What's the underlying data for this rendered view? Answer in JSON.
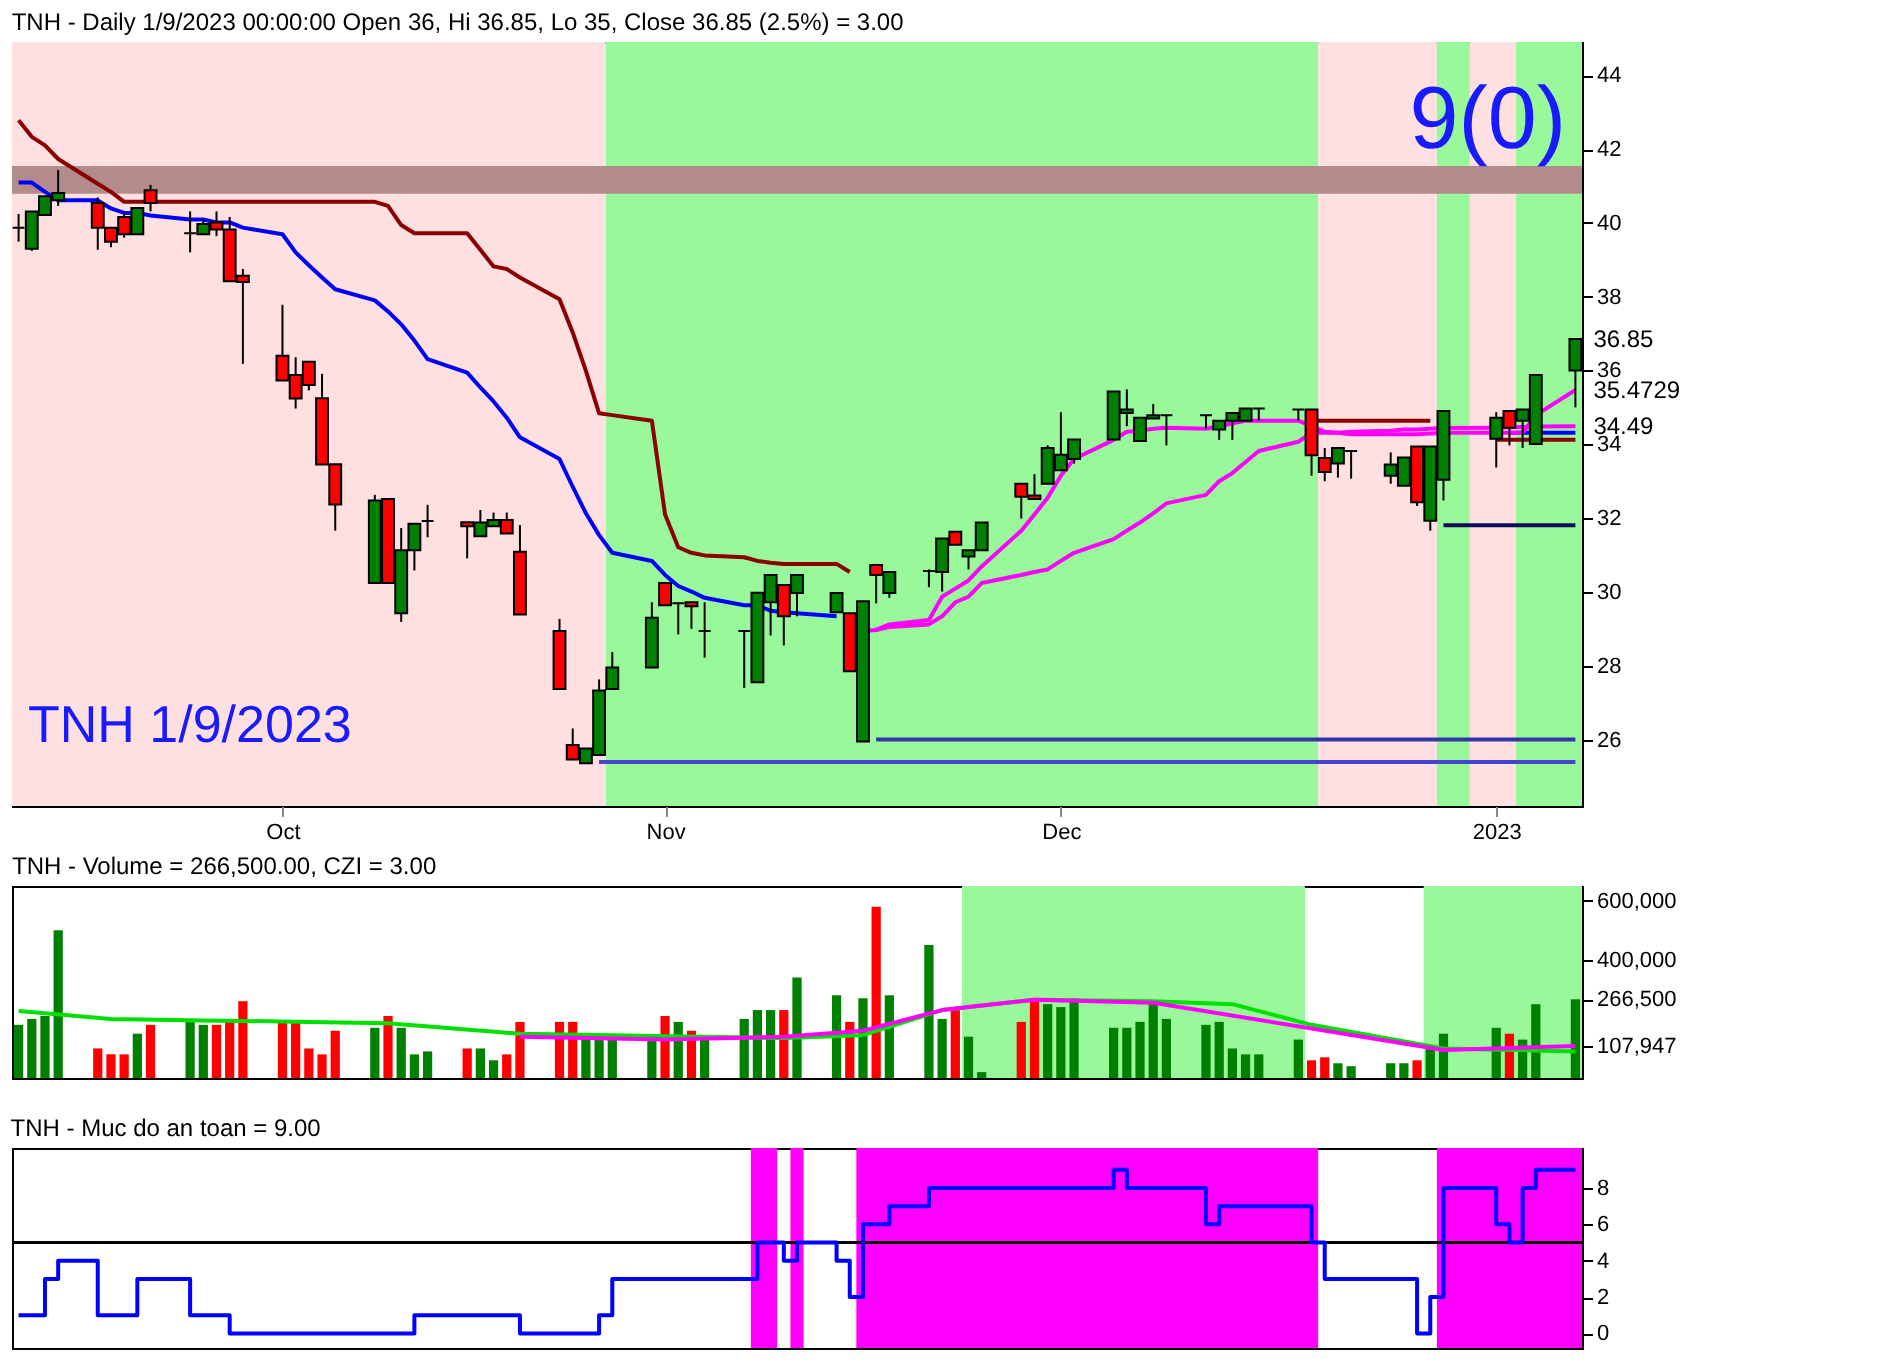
{
  "chart_data": [
    {
      "type": "candlestick",
      "title": "TNH - Daily 1/9/2023 00:00:00 Open 36, Hi 36.85, Lo 35, Close 36.85 (2.5%)  = 3.00",
      "x": [
        "2022-09-13",
        "2022-09-14",
        "2022-09-15",
        "2022-09-16",
        "2022-09-19",
        "2022-09-20",
        "2022-09-21",
        "2022-09-22",
        "2022-09-23",
        "2022-09-26",
        "2022-09-27",
        "2022-09-28",
        "2022-09-29",
        "2022-09-30",
        "2022-10-03",
        "2022-10-04",
        "2022-10-05",
        "2022-10-06",
        "2022-10-07",
        "2022-10-10",
        "2022-10-11",
        "2022-10-12",
        "2022-10-13",
        "2022-10-14",
        "2022-10-17",
        "2022-10-18",
        "2022-10-19",
        "2022-10-20",
        "2022-10-21",
        "2022-10-24",
        "2022-10-25",
        "2022-10-26",
        "2022-10-27",
        "2022-10-28",
        "2022-10-31",
        "2022-11-01",
        "2022-11-02",
        "2022-11-03",
        "2022-11-04",
        "2022-11-07",
        "2022-11-08",
        "2022-11-09",
        "2022-11-10",
        "2022-11-11",
        "2022-11-14",
        "2022-11-15",
        "2022-11-16",
        "2022-11-17",
        "2022-11-18",
        "2022-11-21",
        "2022-11-22",
        "2022-11-23",
        "2022-11-24",
        "2022-11-25",
        "2022-11-28",
        "2022-11-29",
        "2022-11-30",
        "2022-12-01",
        "2022-12-02",
        "2022-12-05",
        "2022-12-06",
        "2022-12-07",
        "2022-12-08",
        "2022-12-09",
        "2022-12-12",
        "2022-12-13",
        "2022-12-14",
        "2022-12-15",
        "2022-12-16",
        "2022-12-19",
        "2022-12-20",
        "2022-12-21",
        "2022-12-22",
        "2022-12-23",
        "2022-12-26",
        "2022-12-27",
        "2022-12-28",
        "2022-12-29",
        "2022-12-30",
        "2023-01-03",
        "2023-01-04",
        "2023-01-05",
        "2023-01-06",
        "2023-01-09"
      ],
      "ohlc": [
        [
          39.87,
          40.24,
          39.49,
          39.87
        ],
        [
          39.3,
          40.31,
          39.24,
          40.31
        ],
        [
          40.21,
          40.72,
          40.21,
          40.72
        ],
        [
          40.61,
          41.43,
          40.46,
          40.81
        ],
        [
          40.54,
          40.69,
          39.27,
          39.87
        ],
        [
          39.87,
          39.87,
          39.34,
          39.49
        ],
        [
          40.16,
          40.24,
          39.6,
          39.69
        ],
        [
          39.69,
          40.4,
          39.69,
          40.4
        ],
        [
          40.88,
          41.03,
          40.31,
          40.54
        ],
        [
          39.72,
          40.31,
          39.2,
          39.72
        ],
        [
          39.69,
          40.1,
          39.69,
          39.97
        ],
        [
          40.01,
          40.31,
          39.64,
          39.82
        ],
        [
          39.82,
          40.16,
          38.42,
          38.42
        ],
        [
          38.57,
          38.75,
          36.18,
          38.4
        ],
        [
          36.4,
          37.78,
          35.73,
          35.73
        ],
        [
          35.88,
          36.36,
          34.97,
          35.24
        ],
        [
          36.24,
          36.24,
          35.46,
          35.61
        ],
        [
          35.25,
          35.91,
          33.45,
          33.45
        ],
        [
          33.46,
          33.46,
          31.66,
          32.37
        ],
        [
          30.24,
          32.63,
          30.24,
          32.48
        ],
        [
          32.52,
          32.52,
          30.24,
          30.24
        ],
        [
          29.42,
          31.73,
          29.19,
          31.13
        ],
        [
          31.13,
          31.85,
          30.58,
          31.85
        ],
        [
          31.92,
          32.36,
          31.48,
          31.92
        ],
        [
          31.89,
          31.89,
          30.91,
          31.78
        ],
        [
          31.51,
          32.22,
          31.51,
          31.88
        ],
        [
          31.78,
          32.15,
          31.78,
          31.95
        ],
        [
          31.95,
          32.15,
          31.58,
          31.58
        ],
        [
          31.09,
          31.81,
          29.39,
          29.39
        ],
        [
          28.94,
          29.27,
          27.37,
          27.37
        ],
        [
          25.85,
          26.3,
          25.46,
          25.46
        ],
        [
          25.36,
          25.76,
          25.36,
          25.76
        ],
        [
          25.58,
          27.63,
          25.58,
          27.33
        ],
        [
          27.37,
          28.37,
          27.37,
          27.95
        ],
        [
          27.95,
          29.72,
          27.95,
          29.3
        ],
        [
          30.24,
          30.24,
          29.64,
          29.64
        ],
        [
          29.69,
          29.72,
          28.85,
          29.69
        ],
        [
          29.72,
          29.72,
          29.0,
          29.61
        ],
        [
          28.94,
          29.72,
          28.22,
          28.94
        ],
        [
          28.94,
          28.94,
          27.4,
          28.94
        ],
        [
          27.55,
          29.98,
          27.55,
          29.98
        ],
        [
          29.72,
          30.46,
          28.82,
          30.46
        ],
        [
          30.19,
          30.19,
          28.55,
          29.34
        ],
        [
          29.97,
          30.46,
          29.34,
          30.46
        ],
        [
          29.45,
          29.97,
          29.45,
          29.97
        ],
        [
          29.42,
          29.42,
          27.85,
          27.85
        ],
        [
          25.95,
          29.75,
          25.95,
          29.75
        ],
        [
          30.73,
          30.73,
          29.69,
          30.46
        ],
        [
          29.97,
          30.54,
          29.84,
          30.54
        ],
        [
          30.57,
          30.61,
          30.13,
          30.57
        ],
        [
          30.54,
          31.45,
          30.01,
          31.45
        ],
        [
          31.63,
          31.63,
          31.28,
          31.28
        ],
        [
          30.96,
          31.13,
          30.61,
          31.13
        ],
        [
          31.13,
          31.88,
          31.13,
          31.88
        ],
        [
          32.93,
          32.93,
          31.99,
          32.58
        ],
        [
          32.61,
          33.19,
          32.52,
          32.52
        ],
        [
          32.93,
          33.97,
          32.93,
          33.9
        ],
        [
          33.3,
          34.87,
          33.3,
          33.72
        ],
        [
          33.6,
          34.13,
          33.48,
          34.13
        ],
        [
          34.13,
          35.43,
          34.13,
          35.43
        ],
        [
          34.85,
          35.49,
          34.49,
          34.94
        ],
        [
          34.09,
          34.72,
          34.09,
          34.72
        ],
        [
          34.7,
          35.09,
          34.7,
          34.79
        ],
        [
          34.79,
          34.79,
          33.97,
          34.79
        ],
        [
          34.79,
          34.79,
          34.42,
          34.79
        ],
        [
          34.4,
          34.64,
          34.12,
          34.64
        ],
        [
          34.64,
          34.85,
          34.12,
          34.85
        ],
        [
          34.64,
          34.97,
          34.64,
          34.97
        ],
        [
          34.97,
          34.97,
          34.64,
          34.97
        ],
        [
          34.94,
          34.94,
          34.64,
          34.94
        ],
        [
          34.94,
          34.94,
          33.15,
          33.7
        ],
        [
          33.63,
          33.9,
          33.0,
          33.25
        ],
        [
          33.48,
          33.9,
          33.1,
          33.9
        ],
        [
          33.82,
          33.82,
          33.07,
          33.82
        ],
        [
          33.15,
          33.78,
          32.93,
          33.45
        ],
        [
          32.88,
          33.64,
          32.88,
          33.64
        ],
        [
          33.94,
          33.94,
          32.33,
          32.43
        ],
        [
          31.93,
          33.94,
          31.66,
          33.94
        ],
        [
          33.04,
          34.9,
          32.48,
          34.9
        ],
        [
          34.15,
          34.87,
          33.37,
          34.72
        ],
        [
          34.9,
          34.9,
          33.97,
          34.45
        ],
        [
          34.64,
          34.94,
          33.9,
          34.94
        ],
        [
          34.01,
          35.88,
          34.01,
          35.88
        ],
        [
          36,
          36.85,
          35,
          36.85
        ]
      ],
      "colors": [
        "#000000",
        "#008000",
        "#008000",
        "#008000",
        "#ff0000",
        "#ff0000",
        "#ff0000",
        "#008000",
        "#ff0000",
        "#000000",
        "#008000",
        "#ff0000",
        "#ff0000",
        "#ff0000",
        "#ff0000",
        "#ff0000",
        "#ff0000",
        "#ff0000",
        "#ff0000",
        "#008000",
        "#ff0000",
        "#008000",
        "#008000",
        "#000000",
        "#ff0000",
        "#008000",
        "#008000",
        "#ff0000",
        "#ff0000",
        "#ff0000",
        "#ff0000",
        "#008000",
        "#008000",
        "#008000",
        "#008000",
        "#ff0000",
        "#000000",
        "#ff0000",
        "#000000",
        "#000000",
        "#008000",
        "#008000",
        "#ff0000",
        "#008000",
        "#008000",
        "#ff0000",
        "#008000",
        "#ff0000",
        "#008000",
        "#000000",
        "#008000",
        "#ff0000",
        "#008000",
        "#008000",
        "#ff0000",
        "#ff0000",
        "#008000",
        "#008000",
        "#008000",
        "#008000",
        "#008000",
        "#008000",
        "#008000",
        "#000000",
        "#000000",
        "#008000",
        "#008000",
        "#008000",
        "#000000",
        "#000000",
        "#ff0000",
        "#ff0000",
        "#008000",
        "#000000",
        "#008000",
        "#008000",
        "#ff0000",
        "#008000",
        "#008000",
        "#008000",
        "#ff0000",
        "#008000",
        "#008000",
        "#008000"
      ],
      "series": [
        {
          "type": "line",
          "color": "#0000ff",
          "values": [
            41.09,
            41.09,
            40.84,
            40.61,
            40.61,
            40.39,
            40.27,
            40.27,
            40.2,
            40.09,
            40.09,
            40.01,
            40.01,
            39.87,
            39.69,
            39.2,
            38.85,
            38.52,
            38.2,
            37.9,
            37.6,
            37.25,
            36.81,
            36.31,
            35.94,
            35.54,
            35.16,
            34.72,
            34.19,
            33.6,
            32.85,
            32.13,
            31.54,
            31.06,
            30.84,
            30.46,
            30.16,
            30.01,
            29.84,
            29.64,
            29.64,
            29.49,
            29.45,
            29.42,
            29.34,
            null,
            null,
            null,
            null,
            null,
            null,
            null,
            null,
            null,
            null,
            null,
            null,
            null,
            null,
            null,
            null,
            null,
            null,
            null,
            null,
            null,
            null,
            null,
            null,
            null,
            null,
            null,
            null,
            null,
            null,
            null,
            null,
            null,
            null,
            null,
            34.31,
            34.31,
            34.31,
            34.31
          ]
        },
        {
          "type": "line",
          "color": "#8b0000",
          "values": [
            42.78,
            42.33,
            42.1,
            41.73,
            41.06,
            40.84,
            40.57,
            40.57,
            40.57,
            40.57,
            40.57,
            40.57,
            40.57,
            40.57,
            40.57,
            40.57,
            40.57,
            40.57,
            40.57,
            40.57,
            40.46,
            39.94,
            39.72,
            39.72,
            39.72,
            39.27,
            38.82,
            38.75,
            38.52,
            37.93,
            37.03,
            35.99,
            34.84,
            34.79,
            34.64,
            32.1,
            31.21,
            31.06,
            30.99,
            30.94,
            30.84,
            30.79,
            30.76,
            30.76,
            30.76,
            30.54,
            null,
            null,
            null,
            null,
            null,
            null,
            null,
            null,
            null,
            null,
            null,
            null,
            null,
            null,
            null,
            null,
            null,
            null,
            null,
            null,
            null,
            null,
            null,
            null,
            34.64,
            34.64,
            34.64,
            34.64,
            34.64,
            34.64,
            34.64,
            34.64,
            null,
            34.12,
            34.12,
            34.12,
            34.12,
            34.12
          ]
        },
        {
          "type": "line",
          "color": "#ff00ff",
          "values": [
            null,
            null,
            null,
            null,
            null,
            null,
            null,
            null,
            null,
            null,
            null,
            null,
            null,
            null,
            null,
            null,
            null,
            null,
            null,
            null,
            null,
            null,
            null,
            null,
            null,
            null,
            null,
            null,
            null,
            null,
            null,
            null,
            null,
            null,
            null,
            null,
            null,
            null,
            null,
            null,
            null,
            null,
            null,
            null,
            null,
            null,
            28.94,
            28.97,
            29.12,
            29.24,
            29.87,
            30.09,
            30.31,
            30.69,
            31.66,
            32.1,
            32.55,
            33.15,
            33.6,
            34.12,
            34.34,
            34.37,
            34.42,
            34.45,
            34.42,
            34.49,
            34.57,
            34.64,
            34.64,
            34.64,
            34.49,
            34.34,
            34.31,
            34.27,
            34.27,
            34.27,
            34.27,
            34.29,
            34.31,
            34.31,
            34.31,
            34.31,
            34.79,
            35.47
          ]
        },
        {
          "type": "line",
          "color": "#ff00ff",
          "values": [
            null,
            null,
            null,
            null,
            null,
            null,
            null,
            null,
            null,
            null,
            null,
            null,
            null,
            null,
            null,
            null,
            null,
            null,
            null,
            null,
            null,
            null,
            null,
            null,
            null,
            null,
            null,
            null,
            null,
            null,
            null,
            null,
            null,
            null,
            null,
            null,
            null,
            null,
            null,
            null,
            null,
            null,
            null,
            null,
            null,
            null,
            null,
            28.97,
            29.05,
            29.12,
            29.34,
            29.72,
            29.87,
            30.24,
            30.46,
            30.54,
            30.61,
            30.84,
            31.06,
            31.43,
            31.66,
            31.88,
            32.13,
            32.4,
            32.63,
            33.0,
            33.22,
            33.52,
            33.82,
            34.07,
            34.31,
            34.31,
            34.31,
            34.34,
            34.37,
            34.4,
            34.4,
            34.42,
            34.44,
            34.45,
            34.46,
            34.47,
            34.48,
            34.49
          ]
        },
        {
          "type": "line",
          "color": "#3333aa",
          "x": [
            "2022-11-17",
            "2023-01-09"
          ],
          "values": [
            26.0,
            26.0
          ]
        },
        {
          "type": "line",
          "color": "#0d0d5a",
          "x": [
            "2022-12-30",
            "2023-01-09"
          ],
          "values": [
            31.81,
            31.81
          ]
        },
        {
          "type": "line",
          "color": "#4444cc",
          "x": [
            "2022-10-27",
            "2023-01-09"
          ],
          "values": [
            25.39,
            25.39
          ]
        }
      ],
      "bands": [
        {
          "axis": "x",
          "from": "2022-09-12T12:00",
          "to": "2022-10-27T12:00",
          "color": "#ffe0e0"
        },
        {
          "axis": "x",
          "from": "2022-10-27T12:00",
          "to": "2022-12-20T12:00",
          "color": "#99f899"
        },
        {
          "axis": "x",
          "from": "2022-12-20T12:00",
          "to": "2022-12-29T12:00",
          "color": "#ffe0e0"
        },
        {
          "axis": "x",
          "from": "2022-12-29T12:00",
          "to": "2023-01-01T00:00",
          "color": "#99f899"
        },
        {
          "axis": "x",
          "from": "2023-01-01T00:00",
          "to": "2023-01-04T12:00",
          "color": "#ffe0e0"
        },
        {
          "axis": "x",
          "from": "2023-01-04T12:00",
          "to": "2023-01-09T12:00",
          "color": "#99f899"
        },
        {
          "axis": "y",
          "from": 40.79,
          "to": 41.54,
          "color": "#b38b8b"
        }
      ],
      "annotations": [
        "9(0)",
        "TNH 1/9/2023",
        {
          "text": "36.85",
          "x": "2023-01-09",
          "y": 36.85
        },
        {
          "text": "35.4729",
          "x": "2023-01-09",
          "y": 35.4729
        },
        {
          "text": "34.49",
          "x": "2023-01-09",
          "y": 34.49
        }
      ],
      "ylim": [
        24.2,
        44.9
      ],
      "yticks": [
        26,
        28,
        30,
        32,
        34,
        36,
        38,
        40,
        42,
        44
      ],
      "grid": "y",
      "xlim": [
        "2022-09-12T12:00",
        "2023-01-09T12:00"
      ],
      "xticks": [
        {
          "value": "2022-10-03",
          "label": "Oct"
        },
        {
          "value": "2022-11-01",
          "label": "Nov"
        },
        {
          "value": "2022-12-01",
          "label": "Dec"
        },
        {
          "value": "2023-01-03",
          "label": "2023"
        }
      ]
    },
    {
      "type": "bar",
      "title": "TNH - Volume = 266,500.00, CZI = 3.00",
      "x": [
        "2022-09-13",
        "2022-09-14",
        "2022-09-15",
        "2022-09-16",
        "2022-09-19",
        "2022-09-20",
        "2022-09-21",
        "2022-09-22",
        "2022-09-23",
        "2022-09-26",
        "2022-09-27",
        "2022-09-28",
        "2022-09-29",
        "2022-09-30",
        "2022-10-03",
        "2022-10-04",
        "2022-10-05",
        "2022-10-06",
        "2022-10-07",
        "2022-10-10",
        "2022-10-11",
        "2022-10-12",
        "2022-10-13",
        "2022-10-14",
        "2022-10-17",
        "2022-10-18",
        "2022-10-19",
        "2022-10-20",
        "2022-10-21",
        "2022-10-24",
        "2022-10-25",
        "2022-10-26",
        "2022-10-27",
        "2022-10-28",
        "2022-10-31",
        "2022-11-01",
        "2022-11-02",
        "2022-11-03",
        "2022-11-04",
        "2022-11-07",
        "2022-11-08",
        "2022-11-09",
        "2022-11-10",
        "2022-11-11",
        "2022-11-14",
        "2022-11-15",
        "2022-11-16",
        "2022-11-17",
        "2022-11-18",
        "2022-11-21",
        "2022-11-22",
        "2022-11-23",
        "2022-11-24",
        "2022-11-25",
        "2022-11-28",
        "2022-11-29",
        "2022-11-30",
        "2022-12-01",
        "2022-12-02",
        "2022-12-05",
        "2022-12-06",
        "2022-12-07",
        "2022-12-08",
        "2022-12-09",
        "2022-12-12",
        "2022-12-13",
        "2022-12-14",
        "2022-12-15",
        "2022-12-16",
        "2022-12-19",
        "2022-12-20",
        "2022-12-21",
        "2022-12-22",
        "2022-12-23",
        "2022-12-26",
        "2022-12-27",
        "2022-12-28",
        "2022-12-29",
        "2022-12-30",
        "2023-01-03",
        "2023-01-04",
        "2023-01-05",
        "2023-01-06",
        "2023-01-09"
      ],
      "values": [
        180000,
        200000,
        210000,
        500000,
        100000,
        80000,
        80000,
        150000,
        180000,
        190000,
        180000,
        180000,
        190000,
        260000,
        190000,
        190000,
        100000,
        80000,
        160000,
        170000,
        210000,
        170000,
        80000,
        90000,
        100000,
        100000,
        60000,
        80000,
        190000,
        190000,
        190000,
        130000,
        140000,
        130000,
        140000,
        210000,
        190000,
        160000,
        140000,
        200000,
        230000,
        230000,
        230000,
        340000,
        280000,
        190000,
        270000,
        580000,
        280000,
        450000,
        200000,
        230000,
        140000,
        20000,
        190000,
        270000,
        250000,
        240000,
        270000,
        170000,
        170000,
        190000,
        250000,
        200000,
        180000,
        190000,
        100000,
        80000,
        80000,
        130000,
        60000,
        70000,
        50000,
        40000,
        50000,
        50000,
        60000,
        100000,
        150000,
        170000,
        150000,
        130000,
        250000,
        266500
      ],
      "colors": [
        "#008000",
        "#008000",
        "#008000",
        "#008000",
        "#ff0000",
        "#ff0000",
        "#ff0000",
        "#008000",
        "#ff0000",
        "#008000",
        "#008000",
        "#ff0000",
        "#ff0000",
        "#ff0000",
        "#ff0000",
        "#ff0000",
        "#ff0000",
        "#ff0000",
        "#ff0000",
        "#008000",
        "#ff0000",
        "#008000",
        "#008000",
        "#008000",
        "#ff0000",
        "#008000",
        "#008000",
        "#ff0000",
        "#ff0000",
        "#ff0000",
        "#ff0000",
        "#008000",
        "#008000",
        "#008000",
        "#008000",
        "#ff0000",
        "#008000",
        "#ff0000",
        "#008000",
        "#008000",
        "#008000",
        "#008000",
        "#ff0000",
        "#008000",
        "#008000",
        "#ff0000",
        "#008000",
        "#ff0000",
        "#008000",
        "#008000",
        "#008000",
        "#ff0000",
        "#008000",
        "#008000",
        "#ff0000",
        "#ff0000",
        "#008000",
        "#008000",
        "#008000",
        "#008000",
        "#008000",
        "#008000",
        "#008000",
        "#008000",
        "#008000",
        "#008000",
        "#008000",
        "#008000",
        "#008000",
        "#008000",
        "#ff0000",
        "#ff0000",
        "#008000",
        "#008000",
        "#008000",
        "#008000",
        "#ff0000",
        "#008000",
        "#008000",
        "#008000",
        "#ff0000",
        "#008000",
        "#008000",
        "#008000"
      ],
      "series": [
        {
          "type": "line",
          "color": "#00e000",
          "x": [
            "2022-09-13",
            "2022-09-20",
            "2022-09-27",
            "2022-10-05",
            "2022-10-11",
            "2022-10-21",
            "2022-11-10",
            "2022-11-16",
            "2022-11-22",
            "2022-11-29",
            "2022-12-08",
            "2022-12-14",
            "2022-12-20",
            "2022-12-30",
            "2023-01-09"
          ],
          "values": [
            227000,
            200000,
            195000,
            190000,
            185000,
            150000,
            135000,
            145000,
            230000,
            265000,
            260000,
            250000,
            180000,
            100000,
            90000
          ]
        },
        {
          "type": "line",
          "color": "#ff00ff",
          "x": [
            "2022-10-21",
            "2022-11-01",
            "2022-11-10",
            "2022-11-16",
            "2022-11-22",
            "2022-11-29",
            "2022-12-08",
            "2022-12-30",
            "2023-01-09"
          ],
          "values": [
            140000,
            130000,
            140000,
            160000,
            230000,
            265000,
            255000,
            95000,
            107947
          ]
        }
      ],
      "bands": [
        {
          "axis": "x",
          "from": "2022-11-23T12:00",
          "to": "2022-12-19T12:00",
          "color": "#99f899"
        },
        {
          "axis": "x",
          "from": "2022-12-28T12:00",
          "to": "2023-01-09T12:00",
          "color": "#99f899"
        }
      ],
      "ylim": [
        0,
        650000
      ],
      "yticks": [
        {
          "value": 107947,
          "label": "107,947"
        },
        {
          "value": 266500,
          "label": "266,500"
        },
        {
          "value": 400000,
          "label": "400,000"
        },
        {
          "value": 600000,
          "label": "600,000"
        }
      ],
      "tick_labels": "y",
      "xlim": [
        "2022-09-12T12:00",
        "2023-01-09T12:00"
      ],
      "xticks": [
        {
          "value": "2022-10-03",
          "label": null
        },
        {
          "value": "2022-11-01",
          "label": null
        },
        {
          "value": "2022-12-01",
          "label": null
        },
        {
          "value": "2023-01-03",
          "label": null
        }
      ]
    },
    {
      "type": "step",
      "title": "TNH - Muc do an toan = 9.00",
      "color": "#0000ff",
      "x": [
        "2022-09-13",
        "2022-09-14",
        "2022-09-15",
        "2022-09-16",
        "2022-09-19",
        "2022-09-20",
        "2022-09-21",
        "2022-09-22",
        "2022-09-23",
        "2022-09-26",
        "2022-09-27",
        "2022-09-28",
        "2022-09-29",
        "2022-09-30",
        "2022-10-03",
        "2022-10-04",
        "2022-10-05",
        "2022-10-06",
        "2022-10-07",
        "2022-10-10",
        "2022-10-11",
        "2022-10-12",
        "2022-10-13",
        "2022-10-14",
        "2022-10-17",
        "2022-10-18",
        "2022-10-19",
        "2022-10-20",
        "2022-10-21",
        "2022-10-24",
        "2022-10-25",
        "2022-10-26",
        "2022-10-27",
        "2022-10-28",
        "2022-10-31",
        "2022-11-01",
        "2022-11-02",
        "2022-11-03",
        "2022-11-04",
        "2022-11-07",
        "2022-11-08",
        "2022-11-09",
        "2022-11-10",
        "2022-11-11",
        "2022-11-14",
        "2022-11-15",
        "2022-11-16",
        "2022-11-17",
        "2022-11-18",
        "2022-11-21",
        "2022-11-22",
        "2022-11-23",
        "2022-11-24",
        "2022-11-25",
        "2022-11-28",
        "2022-11-29",
        "2022-11-30",
        "2022-12-01",
        "2022-12-02",
        "2022-12-05",
        "2022-12-06",
        "2022-12-07",
        "2022-12-08",
        "2022-12-09",
        "2022-12-12",
        "2022-12-13",
        "2022-12-14",
        "2022-12-15",
        "2022-12-16",
        "2022-12-19",
        "2022-12-20",
        "2022-12-21",
        "2022-12-22",
        "2022-12-23",
        "2022-12-26",
        "2022-12-27",
        "2022-12-28",
        "2022-12-29",
        "2022-12-30",
        "2023-01-03",
        "2023-01-04",
        "2023-01-05",
        "2023-01-06",
        "2023-01-09"
      ],
      "values": [
        1,
        1,
        3,
        4,
        1,
        1,
        1,
        3,
        3,
        1,
        1,
        1,
        0,
        0,
        0,
        0,
        0,
        0,
        0,
        0,
        0,
        0,
        1,
        1,
        1,
        1,
        1,
        1,
        0,
        0,
        0,
        0,
        1,
        3,
        3,
        3,
        3,
        3,
        3,
        3,
        5,
        5,
        4,
        5,
        4,
        2,
        6,
        6,
        7,
        8,
        8,
        8,
        8,
        8,
        8,
        8,
        8,
        8,
        8,
        9,
        8,
        8,
        8,
        8,
        6,
        7,
        7,
        7,
        7,
        7,
        5,
        3,
        3,
        3,
        3,
        3,
        0,
        2,
        8,
        6,
        5,
        8,
        9,
        9
      ],
      "ref_lines": [
        {
          "axis": "y",
          "value": 5,
          "color": "#000000"
        }
      ],
      "bands": [
        {
          "axis": "x",
          "from": "2022-11-07T12:00",
          "to": "2022-11-09T12:00",
          "color": "#ff00ff"
        },
        {
          "axis": "x",
          "from": "2022-11-10T12:00",
          "to": "2022-11-11T12:00",
          "color": "#ff00ff"
        },
        {
          "axis": "x",
          "from": "2022-11-15T12:00",
          "to": "2022-12-20T12:00",
          "color": "#ff00ff"
        },
        {
          "axis": "x",
          "from": "2022-12-29T12:00",
          "to": "2023-01-09T12:00",
          "color": "#ff00ff"
        }
      ],
      "ylim": [
        -0.8,
        10.2
      ],
      "yticks": [
        0,
        2,
        4,
        6,
        8
      ],
      "tick_labels": "y",
      "xlim": [
        "2022-09-12T12:00",
        "2023-01-09T12:00"
      ],
      "xticks": [
        {
          "value": "2022-10-03",
          "label": null
        },
        {
          "value": "2022-11-01",
          "label": null
        },
        {
          "value": "2022-12-01",
          "label": null
        },
        {
          "value": "2023-01-03",
          "label": null
        }
      ]
    }
  ]
}
